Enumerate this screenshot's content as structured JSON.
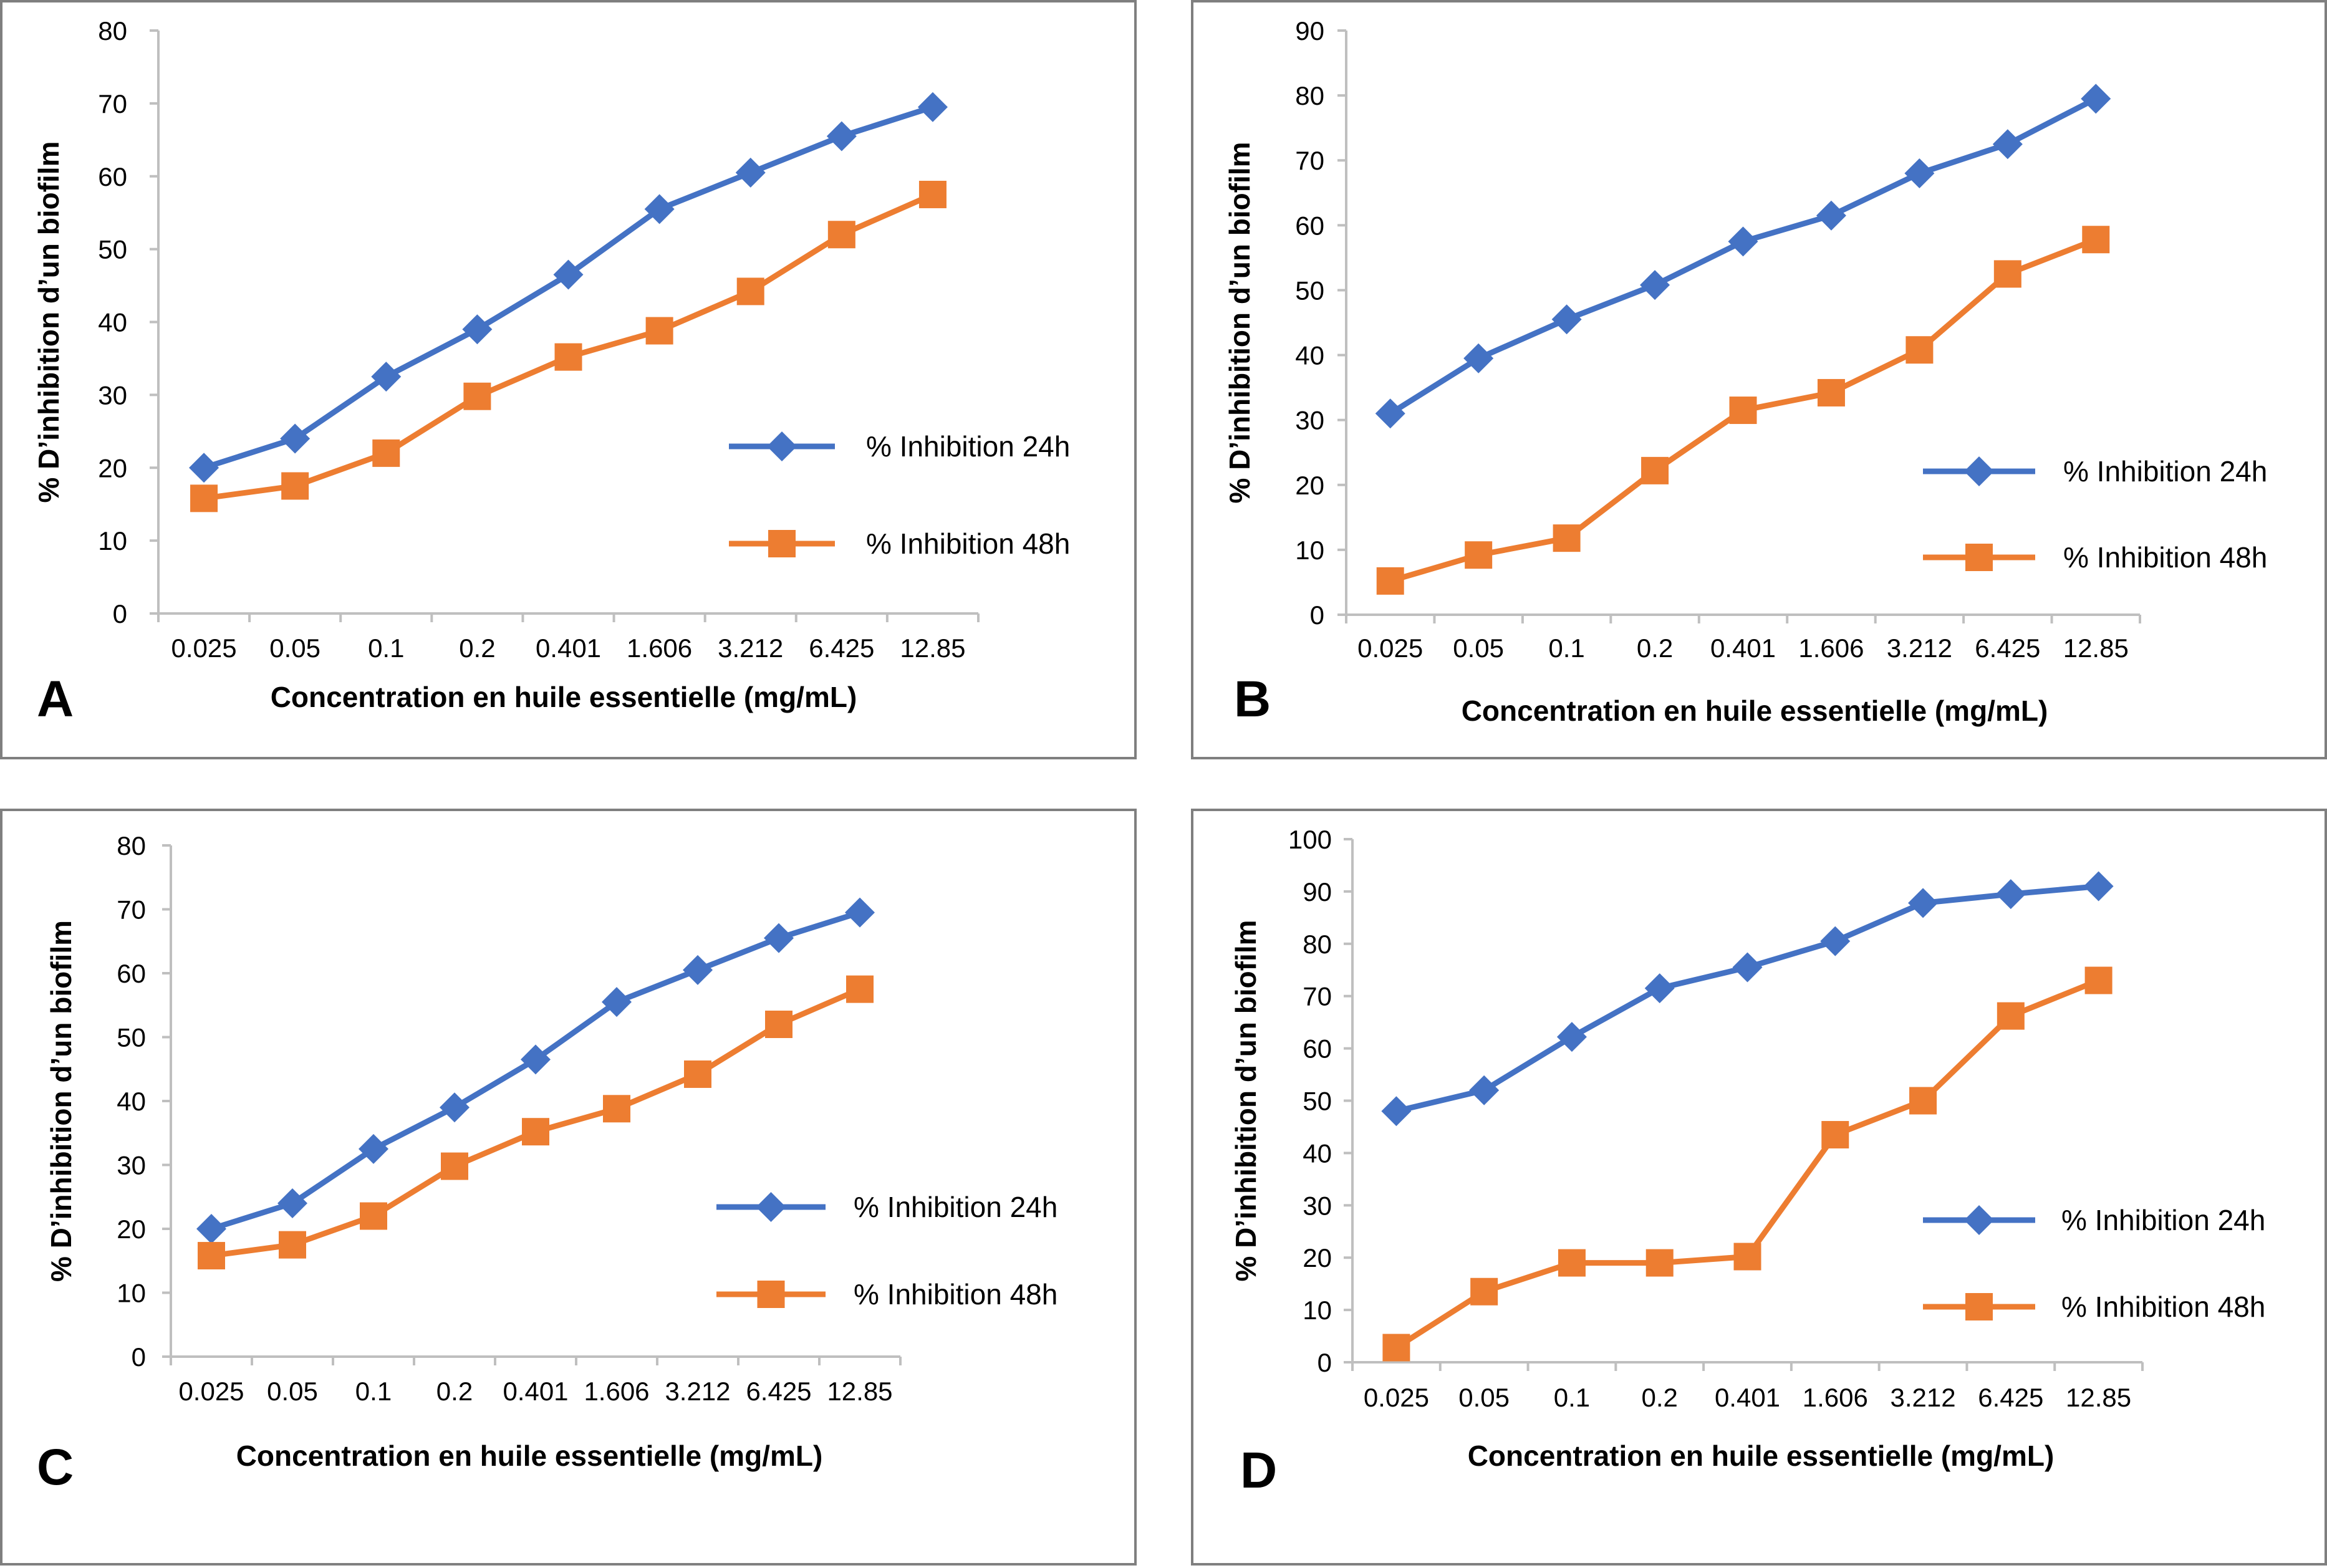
{
  "figure": {
    "panels": [
      "A",
      "B",
      "C",
      "D"
    ]
  },
  "colors": {
    "series_24h": "#4472C4",
    "series_48h": "#ED7D31",
    "axis": "#BFBFBF",
    "border": "#7F7F7F"
  },
  "chart_data": [
    {
      "panel": "A",
      "type": "line",
      "xlabel": "Concentration en  huile essentielle (mg/mL)",
      "ylabel": "% D’inhibition d’un biofilm",
      "categories": [
        "0.025",
        "0.05",
        "0.1",
        "0.2",
        "0.401",
        "1.606",
        "3.212",
        "6.425",
        "12.85"
      ],
      "ylim": [
        0,
        80
      ],
      "yticks": [
        0,
        10,
        20,
        30,
        40,
        50,
        60,
        70,
        80
      ],
      "grid": false,
      "legend_position": "right",
      "series": [
        {
          "name": "% Inhibition 24h",
          "marker": "diamond",
          "values": [
            20,
            24,
            32.5,
            39,
            46.5,
            55.5,
            60.5,
            65.5,
            69.5
          ]
        },
        {
          "name": "% Inhibition 48h",
          "marker": "square",
          "values": [
            15.8,
            17.5,
            22,
            29.8,
            35.2,
            38.8,
            44.2,
            52,
            57.5
          ]
        }
      ]
    },
    {
      "panel": "B",
      "type": "line",
      "xlabel": "Concentration en  huile essentielle (mg/mL)",
      "ylabel": "% D’inhibition d’un biofilm",
      "categories": [
        "0.025",
        "0.05",
        "0.1",
        "0.2",
        "0.401",
        "1.606",
        "3.212",
        "6.425",
        "12.85"
      ],
      "ylim": [
        0,
        90
      ],
      "yticks": [
        0,
        10,
        20,
        30,
        40,
        50,
        60,
        70,
        80,
        90
      ],
      "grid": false,
      "legend_position": "right",
      "series": [
        {
          "name": "% Inhibition 24h",
          "marker": "diamond",
          "values": [
            31,
            39.5,
            45.5,
            50.8,
            57.5,
            61.5,
            68,
            72.5,
            79.5
          ]
        },
        {
          "name": "% Inhibition 48h",
          "marker": "square",
          "values": [
            5.2,
            9.2,
            11.8,
            22.2,
            31.5,
            34.2,
            40.8,
            52.5,
            57.8
          ]
        }
      ]
    },
    {
      "panel": "C",
      "type": "line",
      "xlabel": "Concentration en  huile essentielle (mg/mL)",
      "ylabel": "% D’inhibition d’un biofilm",
      "categories": [
        "0.025",
        "0.05",
        "0.1",
        "0.2",
        "0.401",
        "1.606",
        "3.212",
        "6.425",
        "12.85"
      ],
      "ylim": [
        0,
        80
      ],
      "yticks": [
        0,
        10,
        20,
        30,
        40,
        50,
        60,
        70,
        80
      ],
      "grid": false,
      "legend_position": "right",
      "series": [
        {
          "name": "% Inhibition 24h",
          "marker": "diamond",
          "values": [
            20,
            24,
            32.5,
            39,
            46.5,
            55.5,
            60.5,
            65.5,
            69.5
          ]
        },
        {
          "name": "% Inhibition 48h",
          "marker": "square",
          "values": [
            15.8,
            17.5,
            22,
            29.8,
            35.2,
            38.8,
            44.2,
            52,
            57.5
          ]
        }
      ]
    },
    {
      "panel": "D",
      "type": "line",
      "xlabel": "Concentration en  huile essentielle (mg/mL)",
      "ylabel": "% D’inhibition d’un biofilm",
      "categories": [
        "0.025",
        "0.05",
        "0.1",
        "0.2",
        "0.401",
        "1.606",
        "3.212",
        "6.425",
        "12.85"
      ],
      "ylim": [
        0,
        100
      ],
      "yticks": [
        0,
        10,
        20,
        30,
        40,
        50,
        60,
        70,
        80,
        90,
        100
      ],
      "grid": false,
      "legend_position": "right",
      "series": [
        {
          "name": "% Inhibition 24h",
          "marker": "diamond",
          "values": [
            48,
            52,
            62.2,
            71.5,
            75.5,
            80.5,
            87.8,
            89.5,
            91
          ]
        },
        {
          "name": "% Inhibition 48h",
          "marker": "square",
          "values": [
            2.8,
            13.5,
            19,
            19,
            20.2,
            43.5,
            50,
            66.2,
            73
          ]
        }
      ]
    }
  ]
}
